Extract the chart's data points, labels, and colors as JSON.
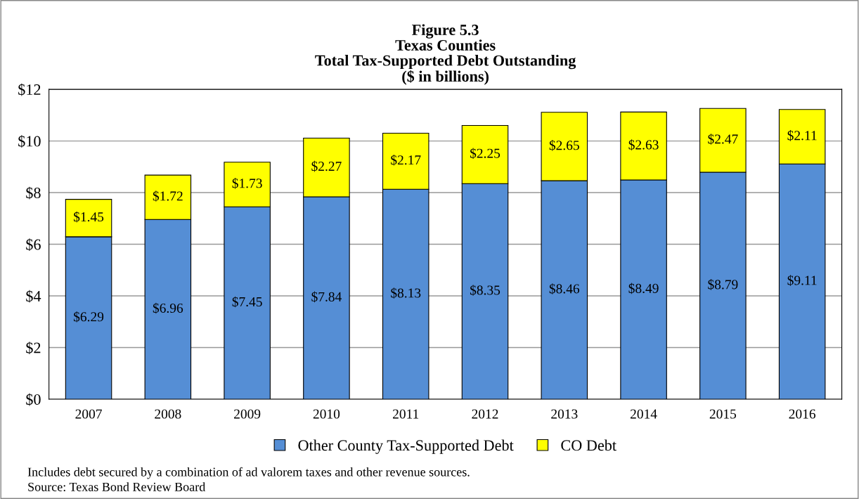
{
  "chart_data": {
    "type": "bar",
    "title": "Figure 5.3\nTexas Counties\nTotal Tax-Supported Debt Outstanding\n($ in billions)",
    "categories": [
      "2007",
      "2008",
      "2009",
      "2010",
      "2011",
      "2012",
      "2013",
      "2014",
      "2015",
      "2016"
    ],
    "series": [
      {
        "name": "Other County Tax-Supported Debt",
        "color": "#558ed5",
        "values": [
          6.29,
          6.96,
          7.45,
          7.84,
          8.13,
          8.35,
          8.46,
          8.49,
          8.79,
          9.11
        ],
        "value_labels": [
          "$6.29",
          "$6.96",
          "$7.45",
          "$7.84",
          "$8.13",
          "$8.35",
          "$8.46",
          "$8.49",
          "$8.79",
          "$9.11"
        ]
      },
      {
        "name": "CO Debt",
        "color": "#ffff00",
        "values": [
          1.45,
          1.72,
          1.73,
          2.27,
          2.17,
          2.25,
          2.65,
          2.63,
          2.47,
          2.11
        ],
        "value_labels": [
          "$1.45",
          "$1.72",
          "$1.73",
          "$2.27",
          "$2.17",
          "$2.25",
          "$2.65",
          "$2.63",
          "$2.47",
          "$2.11"
        ]
      }
    ],
    "stacked": true,
    "ylim": [
      0,
      12
    ],
    "yticks": [
      {
        "value": 0,
        "label": "$0"
      },
      {
        "value": 2,
        "label": "$2"
      },
      {
        "value": 4,
        "label": "$4"
      },
      {
        "value": 6,
        "label": "$6"
      },
      {
        "value": 8,
        "label": "$8"
      },
      {
        "value": 10,
        "label": "$10"
      },
      {
        "value": 12,
        "label": "$12"
      }
    ],
    "grid": "y",
    "legend": "bottom",
    "annotations": [
      "Includes debt secured by a combination of ad valorem taxes and other revenue sources.",
      "Source: Texas Bond Review Board"
    ]
  }
}
